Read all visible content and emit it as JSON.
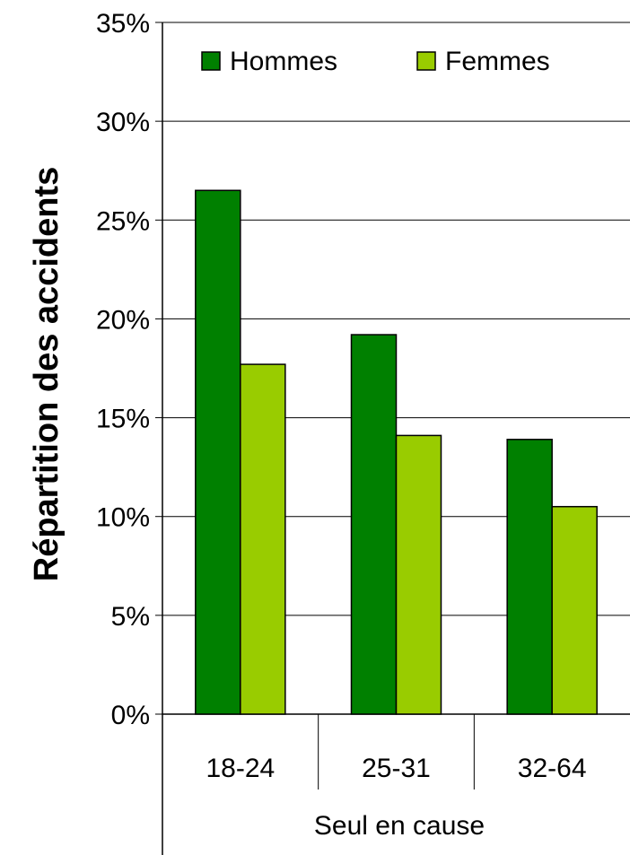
{
  "chart_data": {
    "type": "bar",
    "categories": [
      "18-24",
      "25-31",
      "32-64"
    ],
    "group_label": "Seul en cause",
    "series": [
      {
        "name": "Hommes",
        "values": [
          26.5,
          19.2,
          13.9
        ],
        "color": "#008000"
      },
      {
        "name": "Femmes",
        "values": [
          17.7,
          14.1,
          10.5
        ],
        "color": "#99cc00"
      }
    ],
    "y_ticks": [
      "0%",
      "5%",
      "10%",
      "15%",
      "20%",
      "25%",
      "30%",
      "35%"
    ],
    "ylim": [
      0,
      35
    ],
    "ylabel": "Répartition des accidents",
    "xlabel": "",
    "grid": true,
    "legend_position": "top"
  }
}
